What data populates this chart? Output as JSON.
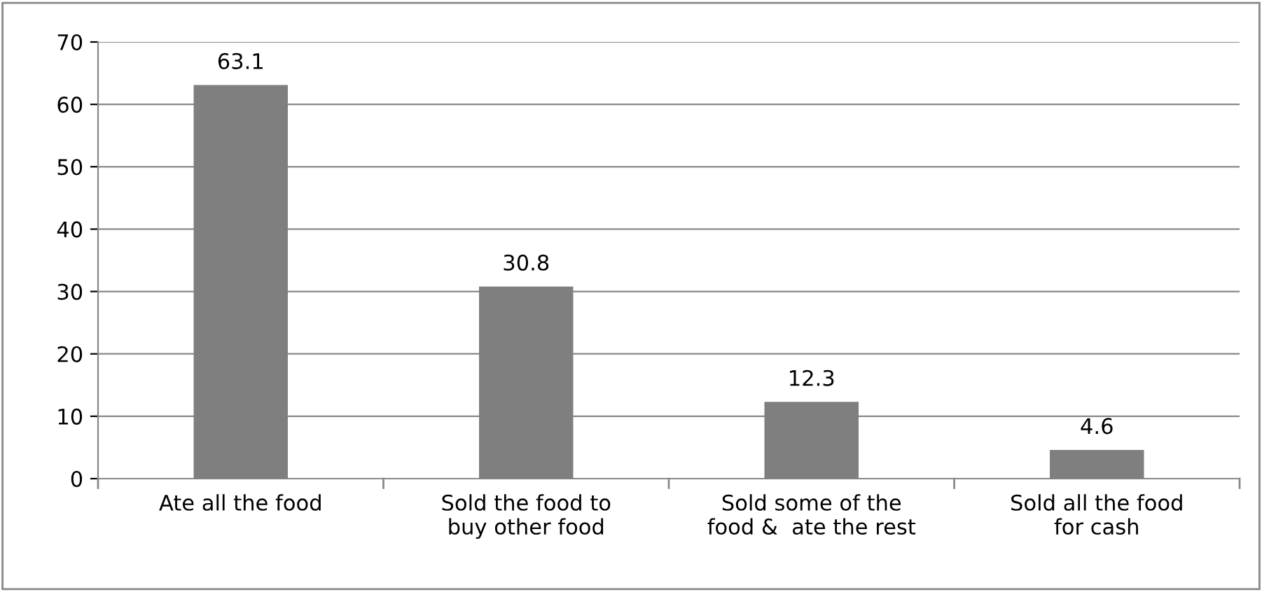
{
  "chart_data": {
    "type": "bar",
    "categories": [
      "Ate all the food",
      "Sold the food to\nbuy other food",
      "Sold some of the\nfood &  ate the rest",
      "Sold all the food\nfor cash"
    ],
    "values": [
      63.1,
      30.8,
      12.3,
      4.6
    ],
    "color": "#7f7f7f",
    "ylim": [
      0,
      70
    ],
    "yticks": [
      0,
      10,
      20,
      30,
      40,
      50,
      60,
      70
    ],
    "grid": "y",
    "data_labels": true,
    "legend": false
  }
}
